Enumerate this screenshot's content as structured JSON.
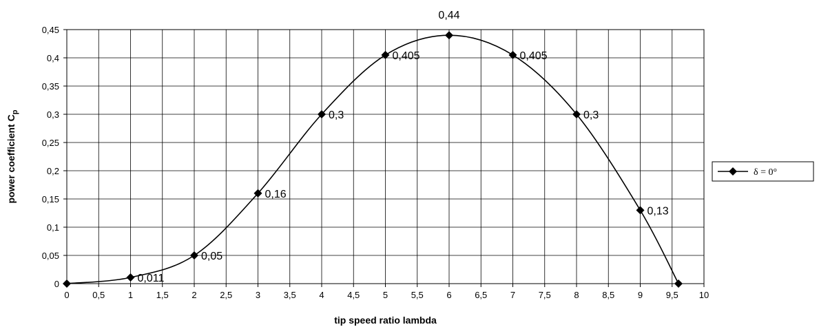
{
  "chart_data": {
    "type": "line",
    "xlabel": "tip speed ratio lambda",
    "ylabel_main": "power coefficient C",
    "ylabel_sub": "p",
    "xlim": [
      0,
      10
    ],
    "ylim": [
      0,
      0.45
    ],
    "x_tick_labels": [
      "0",
      "0,5",
      "1",
      "1,5",
      "2",
      "2,5",
      "3",
      "3,5",
      "4",
      "4,5",
      "5",
      "5,5",
      "6",
      "6,5",
      "7",
      "7,5",
      "8",
      "8,5",
      "9",
      "9,5",
      "10"
    ],
    "y_tick_labels": [
      "0",
      "0,05",
      "0,1",
      "0,15",
      "0,2",
      "0,25",
      "0,3",
      "0,35",
      "0,4",
      "0,45"
    ],
    "grid": true,
    "legend_position": "right",
    "series": [
      {
        "name": "δ = 0°",
        "color": "#000000",
        "marker": "diamond",
        "smooth": true,
        "points": [
          {
            "x": 0,
            "y": 0,
            "label": ""
          },
          {
            "x": 1,
            "y": 0.011,
            "label": "0,011"
          },
          {
            "x": 2,
            "y": 0.05,
            "label": "0,05"
          },
          {
            "x": 3,
            "y": 0.16,
            "label": "0,16"
          },
          {
            "x": 4,
            "y": 0.3,
            "label": "0,3"
          },
          {
            "x": 5,
            "y": 0.405,
            "label": "0,405"
          },
          {
            "x": 6,
            "y": 0.44,
            "label": "0,44"
          },
          {
            "x": 7,
            "y": 0.405,
            "label": "0,405"
          },
          {
            "x": 8,
            "y": 0.3,
            "label": "0,3"
          },
          {
            "x": 9,
            "y": 0.13,
            "label": "0,13"
          },
          {
            "x": 9.6,
            "y": 0,
            "label": ""
          }
        ]
      }
    ]
  }
}
